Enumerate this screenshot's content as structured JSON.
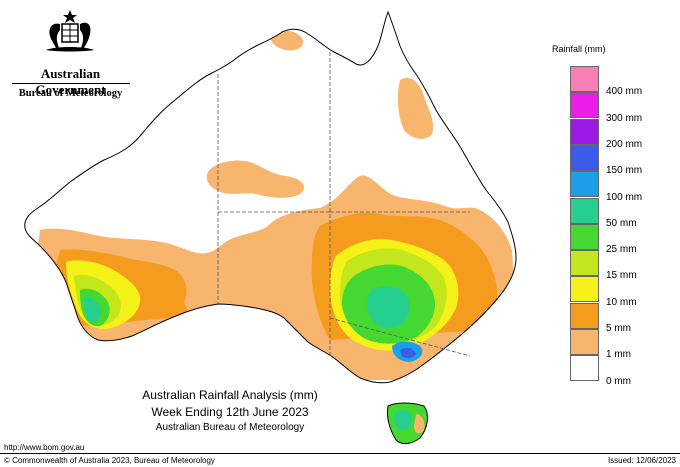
{
  "header": {
    "government": "Australian Government",
    "agency": "Bureau of Meteorology",
    "crest_icon": "coat-of-arms-icon"
  },
  "map": {
    "region": "Australia",
    "colors": {
      "land_outline": "#000000",
      "state_border": "#555555",
      "band_1mm": "#f7b56d",
      "band_5mm": "#f59b1e",
      "band_10mm": "#f5f219",
      "band_15mm": "#c3e61c",
      "band_25mm": "#44d830",
      "band_50mm": "#27cf8f",
      "band_100mm": "#1ba0e8",
      "band_150mm": "#3b5be8",
      "band_200mm": "#9d19e6",
      "band_300mm": "#ee1ce8",
      "band_400mm": "#f77fb5"
    }
  },
  "legend": {
    "title": "Rainfall (mm)",
    "items": [
      {
        "label": "",
        "color": "#f77fb5"
      },
      {
        "label": "400 mm",
        "color": "#ee1ce8"
      },
      {
        "label": "300 mm",
        "color": "#9d19e6"
      },
      {
        "label": "200 mm",
        "color": "#3b5be8"
      },
      {
        "label": "150 mm",
        "color": "#1ba0e8"
      },
      {
        "label": "100 mm",
        "color": "#27cf8f"
      },
      {
        "label": "50 mm",
        "color": "#44d830"
      },
      {
        "label": "25 mm",
        "color": "#c3e61c"
      },
      {
        "label": "15 mm",
        "color": "#f5f219"
      },
      {
        "label": "10 mm",
        "color": "#f59b1e"
      },
      {
        "label": "5 mm",
        "color": "#f7b56d"
      },
      {
        "label": "1 mm",
        "color": "#ffffff"
      }
    ],
    "bottom_label": "0 mm"
  },
  "caption": {
    "line1": "Australian Rainfall Analysis (mm)",
    "line2": "Week Ending 12th June 2023",
    "line3": "Australian Bureau of Meteorology"
  },
  "footer": {
    "url": "http://www.bom.gov.au",
    "copyright": "© Commonwealth of Australia 2023, Bureau of Meteorology",
    "issued": "Issued: 12/06/2023"
  }
}
